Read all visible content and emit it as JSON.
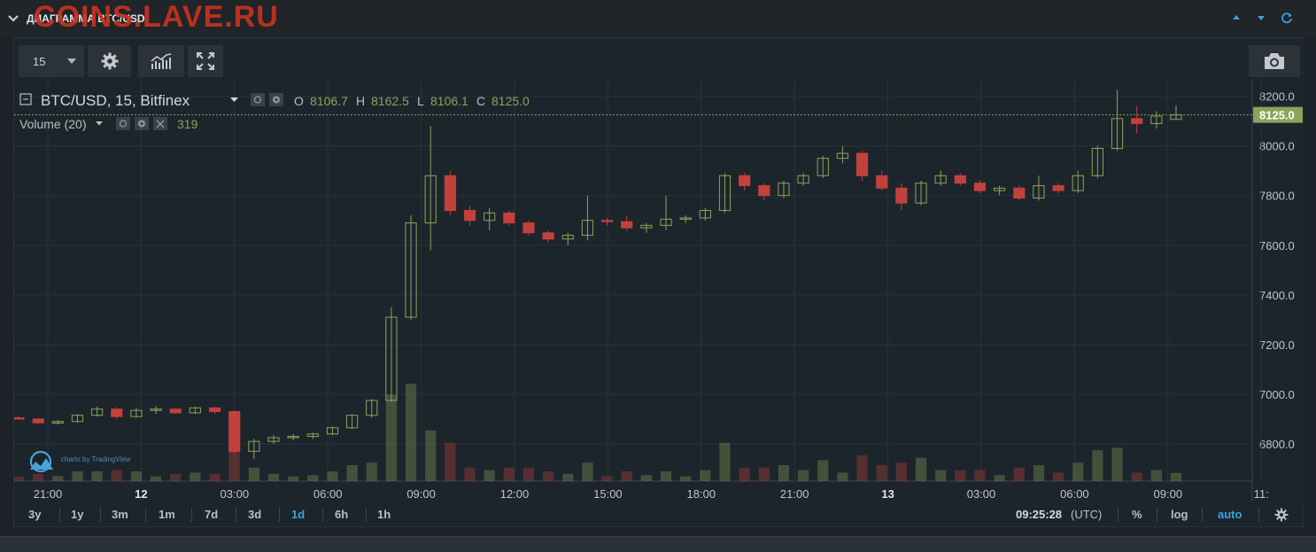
{
  "watermark": "COINS.LAVE.RU",
  "panel": {
    "title": "ДИАГРАММА BTC/USD",
    "controls": [
      "arrow-up-icon",
      "arrow-down-icon",
      "refresh-icon"
    ]
  },
  "toolbar": {
    "resolution": "15",
    "buttons": [
      "settings-gear-icon",
      "indicators-icon",
      "fullscreen-icon",
      "camera-snapshot-icon"
    ]
  },
  "legend": {
    "symbol": "BTC/USD, 15, Bitfinex",
    "open_label": "O",
    "open": "8106.7",
    "high_label": "H",
    "high": "8162.5",
    "low_label": "L",
    "low": "8106.1",
    "close_label": "C",
    "close": "8125.0",
    "volume_label": "Volume (20)",
    "volume_value": "319"
  },
  "branding": "charts by TradingView",
  "chart_data": {
    "type": "candlestick",
    "symbol": "BTC/USD",
    "interval": "15",
    "exchange": "Bitfinex",
    "y_ticks": [
      "8200.0",
      "8000.0",
      "7800.0",
      "7600.0",
      "7400.0",
      "7200.0",
      "7000.0",
      "6800.0"
    ],
    "ylim": [
      6650,
      8270
    ],
    "last_price": "8125.0",
    "x_ticks": [
      "21:00",
      "12",
      "03:00",
      "06:00",
      "09:00",
      "12:00",
      "15:00",
      "18:00",
      "21:00",
      "13",
      "03:00",
      "06:00",
      "09:00",
      "11:"
    ],
    "colors": {
      "up": "#8ba35a",
      "down": "#c2413c",
      "last_price_line": "#8ba35a",
      "grid": "#27313a"
    },
    "candles_ohlc_sample": [
      [
        6905,
        6912,
        6898,
        6902
      ],
      [
        6900,
        6905,
        6880,
        6885
      ],
      [
        6884,
        6895,
        6878,
        6890
      ],
      [
        6890,
        6920,
        6886,
        6915
      ],
      [
        6915,
        6950,
        6910,
        6940
      ],
      [
        6940,
        6948,
        6900,
        6910
      ],
      [
        6910,
        6945,
        6905,
        6935
      ],
      [
        6935,
        6952,
        6920,
        6940
      ],
      [
        6940,
        6942,
        6920,
        6925
      ],
      [
        6925,
        6950,
        6920,
        6945
      ],
      [
        6945,
        6948,
        6920,
        6930
      ],
      [
        6930,
        6935,
        6760,
        6770
      ],
      [
        6770,
        6820,
        6740,
        6810
      ],
      [
        6810,
        6835,
        6800,
        6825
      ],
      [
        6825,
        6840,
        6815,
        6830
      ],
      [
        6830,
        6845,
        6820,
        6840
      ],
      [
        6840,
        6870,
        6835,
        6865
      ],
      [
        6865,
        6920,
        6860,
        6915
      ],
      [
        6915,
        6980,
        6905,
        6975
      ],
      [
        6975,
        7350,
        6970,
        7310
      ],
      [
        7310,
        7720,
        7300,
        7690
      ],
      [
        7690,
        8080,
        7580,
        7880
      ],
      [
        7880,
        7900,
        7720,
        7740
      ],
      [
        7740,
        7760,
        7680,
        7700
      ],
      [
        7700,
        7750,
        7660,
        7730
      ],
      [
        7730,
        7740,
        7680,
        7690
      ],
      [
        7690,
        7700,
        7640,
        7650
      ],
      [
        7650,
        7660,
        7610,
        7625
      ],
      [
        7625,
        7650,
        7600,
        7640
      ],
      [
        7640,
        7800,
        7620,
        7700
      ],
      [
        7700,
        7710,
        7680,
        7695
      ],
      [
        7695,
        7720,
        7660,
        7670
      ],
      [
        7670,
        7690,
        7650,
        7680
      ],
      [
        7680,
        7800,
        7660,
        7705
      ],
      [
        7705,
        7720,
        7690,
        7710
      ],
      [
        7710,
        7750,
        7700,
        7740
      ],
      [
        7740,
        7890,
        7730,
        7880
      ],
      [
        7880,
        7890,
        7820,
        7840
      ],
      [
        7840,
        7850,
        7780,
        7800
      ],
      [
        7800,
        7860,
        7790,
        7850
      ],
      [
        7850,
        7890,
        7840,
        7880
      ],
      [
        7880,
        7960,
        7870,
        7950
      ],
      [
        7950,
        8000,
        7930,
        7970
      ],
      [
        7970,
        7980,
        7860,
        7880
      ],
      [
        7880,
        7900,
        7820,
        7830
      ],
      [
        7830,
        7850,
        7740,
        7770
      ],
      [
        7770,
        7860,
        7760,
        7850
      ],
      [
        7850,
        7900,
        7840,
        7880
      ],
      [
        7880,
        7890,
        7840,
        7850
      ],
      [
        7850,
        7860,
        7810,
        7820
      ],
      [
        7820,
        7840,
        7800,
        7830
      ],
      [
        7830,
        7840,
        7780,
        7790
      ],
      [
        7790,
        7880,
        7780,
        7840
      ],
      [
        7840,
        7850,
        7810,
        7820
      ],
      [
        7820,
        7900,
        7810,
        7880
      ],
      [
        7880,
        8000,
        7870,
        7990
      ],
      [
        7990,
        8225,
        7980,
        8110
      ],
      [
        8110,
        8160,
        8050,
        8090
      ],
      [
        8090,
        8140,
        8070,
        8120
      ],
      [
        8106.7,
        8162.5,
        8106.1,
        8125.0
      ]
    ]
  },
  "bottom": {
    "ranges": [
      "3y",
      "1y",
      "3m",
      "1m",
      "7d",
      "3d",
      "1d",
      "6h",
      "1h"
    ],
    "active_range": "1d",
    "clock": "09:25:28",
    "timezone": "(UTC)",
    "percent": "%",
    "log": "log",
    "auto": "auto",
    "settings": "gear-icon"
  }
}
